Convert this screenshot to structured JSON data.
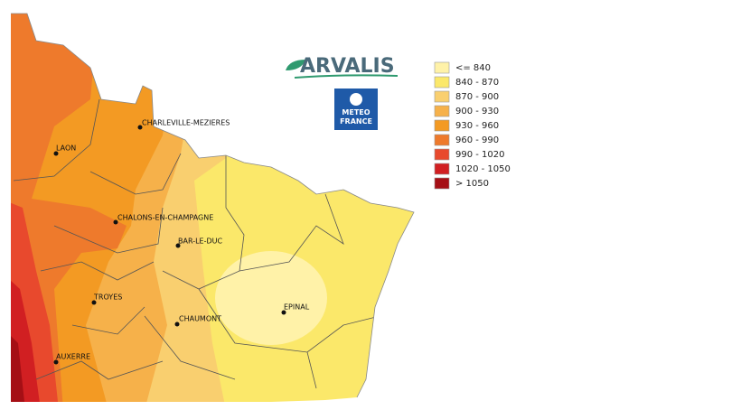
{
  "logos": {
    "arvalis": "ARVALIS",
    "meteo_france": [
      "METEO",
      "FRANCE"
    ]
  },
  "legend": [
    {
      "label": "<= 840",
      "color": "#fff2a8"
    },
    {
      "label": "840 - 870",
      "color": "#fbe86a"
    },
    {
      "label": "870 - 900",
      "color": "#f9cf6f"
    },
    {
      "label": "900 - 930",
      "color": "#f6b14a"
    },
    {
      "label": "930 - 960",
      "color": "#f39a23"
    },
    {
      "label": "960 - 990",
      "color": "#ee7a2c"
    },
    {
      "label": "990 - 1020",
      "color": "#e8492d"
    },
    {
      "label": "1020 - 1050",
      "color": "#d11f22"
    },
    {
      "label": "> 1050",
      "color": "#a50f15"
    }
  ],
  "cities": [
    "CHARLEVILLE-MEZIERES",
    "LAON",
    "CHALONS-EN-CHAMPAGNE",
    "BAR-LE-DUC",
    "TROYES",
    "CHAUMONT",
    "EPINAL",
    "AUXERRE"
  ]
}
